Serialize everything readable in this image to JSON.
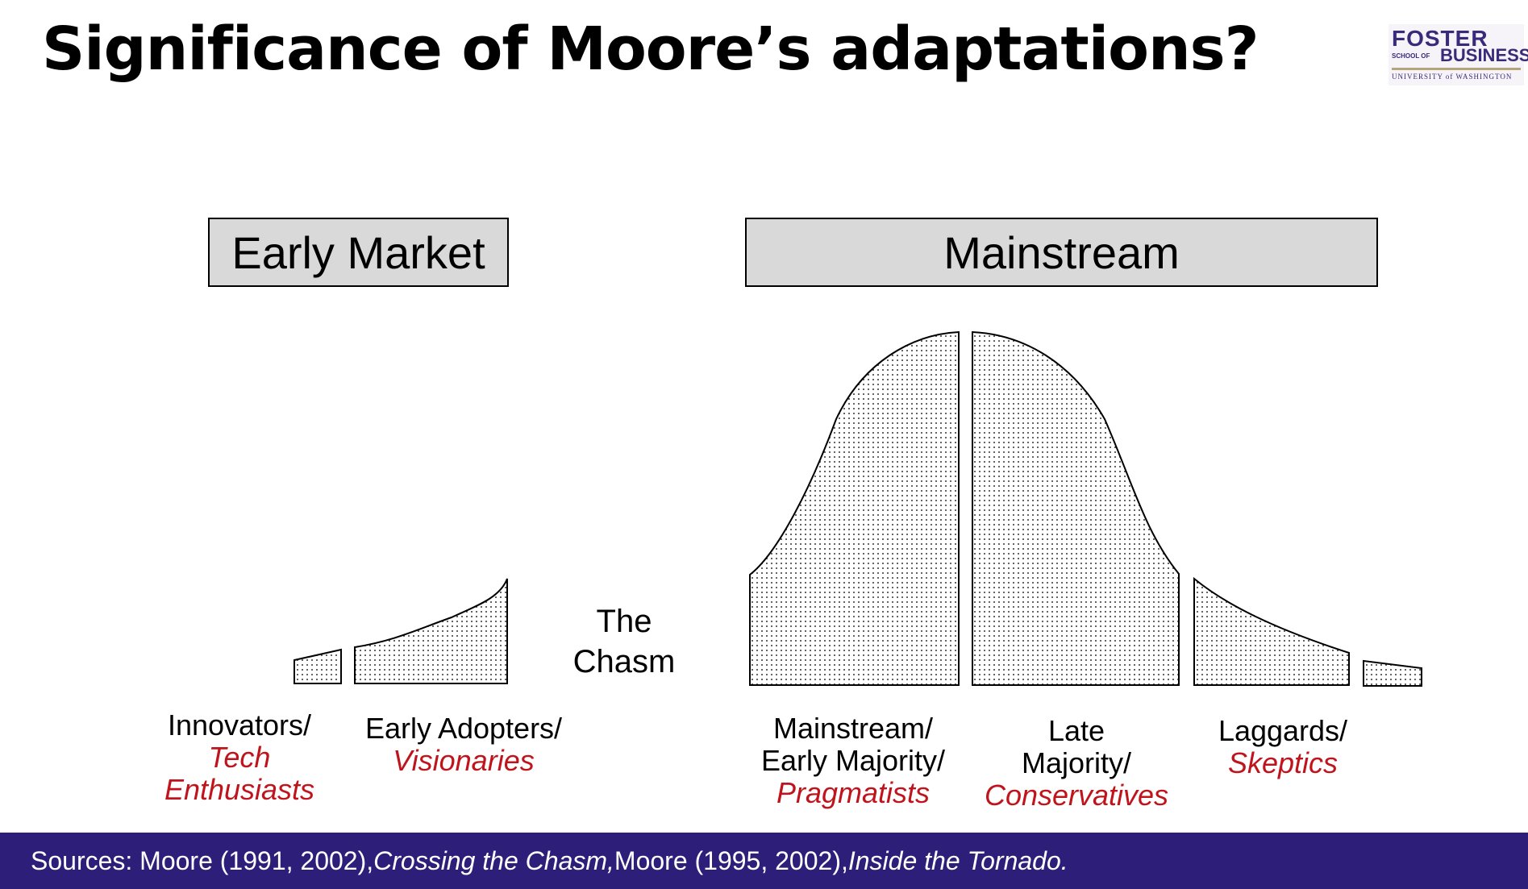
{
  "title": "Significance of Moore’s adaptations?",
  "logo": {
    "line1": "FOSTER",
    "line2a": "SCHOOL OF",
    "line2b": "BUSINESS",
    "line3": "UNIVERSITY of WASHINGTON"
  },
  "segments": {
    "early_market": "Early Market",
    "mainstream": "Mainstream"
  },
  "chasm": [
    "The",
    "Chasm"
  ],
  "groups": [
    {
      "name": "Innovators/",
      "role_lines": [
        "Tech",
        "Enthusiasts"
      ]
    },
    {
      "name": "Early Adopters/",
      "role_lines": [
        "Visionaries"
      ]
    },
    {
      "name_lines": [
        "Mainstream/",
        "Early Majority/"
      ],
      "role_lines": [
        "Pragmatists"
      ]
    },
    {
      "name_lines": [
        "Late",
        "Majority/"
      ],
      "role_lines": [
        "Conservatives"
      ]
    },
    {
      "name": "Laggards/",
      "role_lines": [
        "Skeptics"
      ]
    }
  ],
  "footer": {
    "p1": "Sources: Moore (1991, 2002), ",
    "p2": "Crossing the Chasm,",
    "p3": " Moore (1995, 2002), ",
    "p4": "Inside the Tornado."
  },
  "colors": {
    "footer_bg": "#2d1e7a",
    "role_text": "#c0141c",
    "segment_box": "#d9d9d9"
  }
}
